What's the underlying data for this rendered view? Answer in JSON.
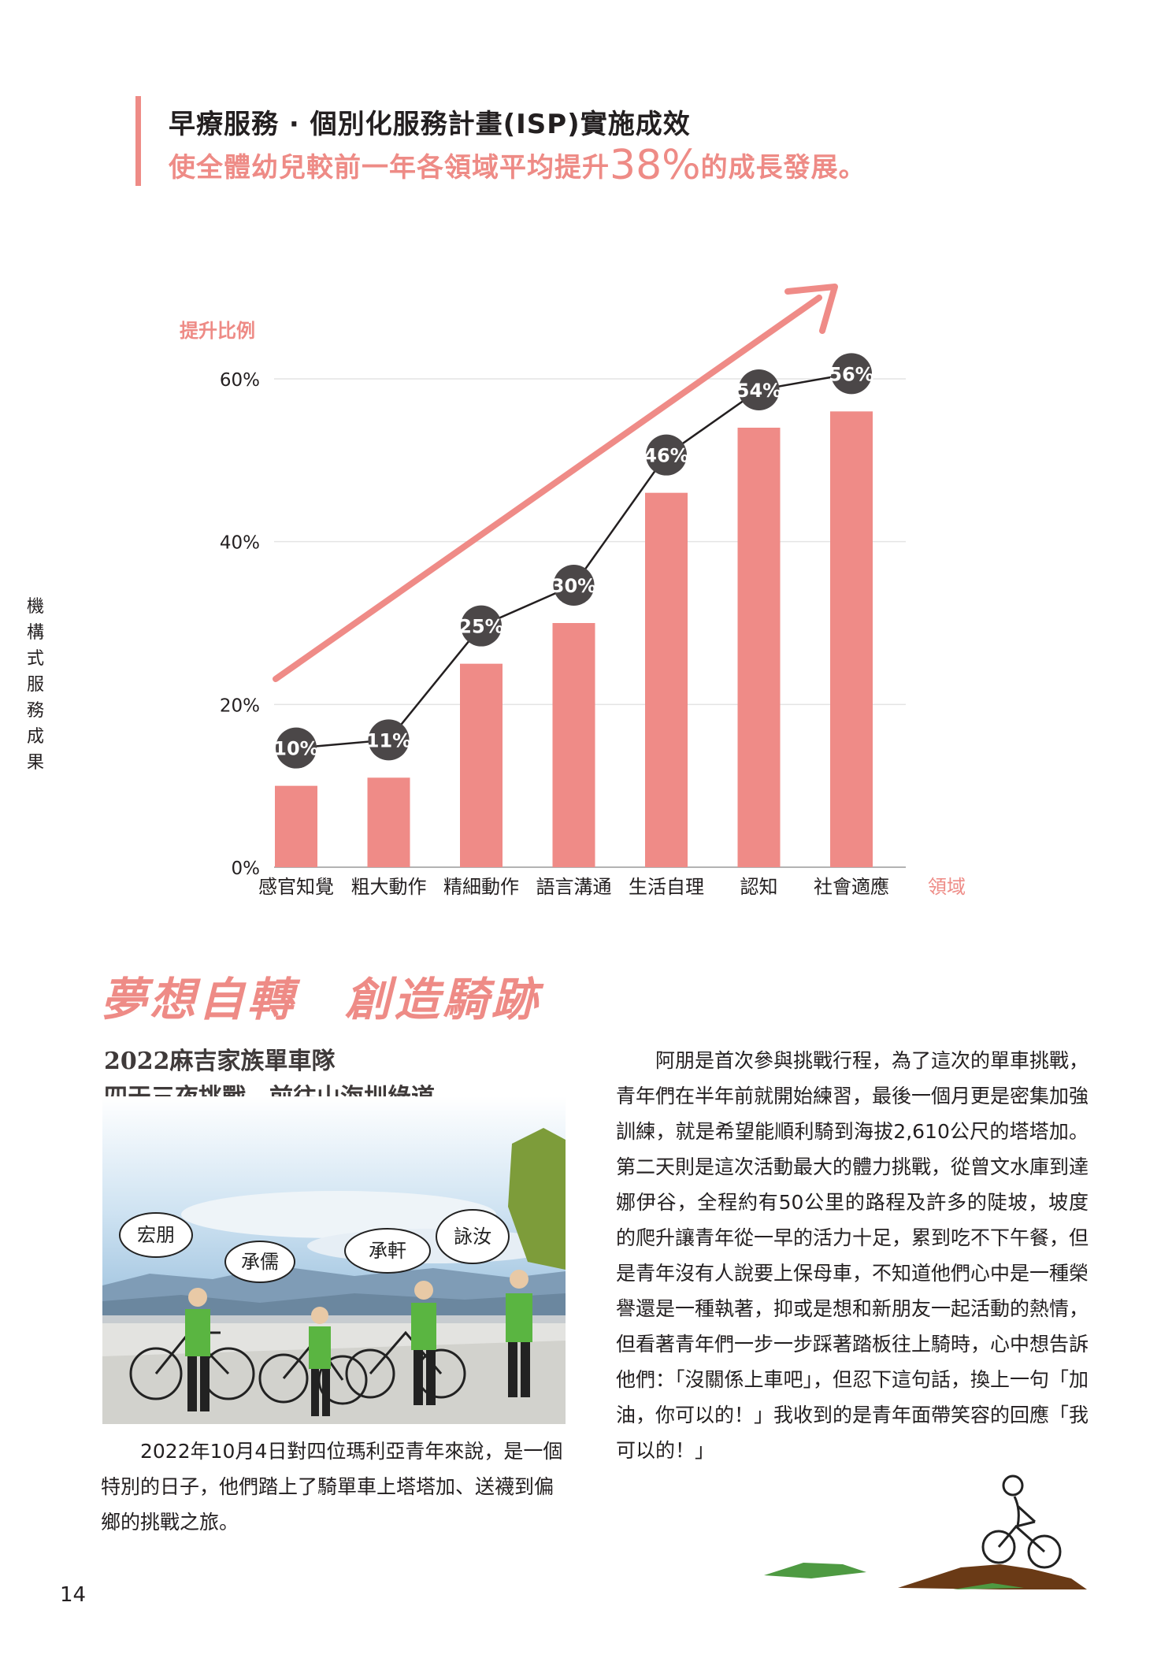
{
  "header": {
    "title": "早療服務 · 個別化服務計畫(ISP)實施成效",
    "subtitle_pre": "使全體幼兒較前一年各領域平均提升",
    "subtitle_num": "38%",
    "subtitle_post": "的成長發展。"
  },
  "side_label": "機構式服務成果",
  "chart_data": {
    "type": "bar",
    "ylabel": "提升比例",
    "xlabel": "領域",
    "categories": [
      "感官知覺",
      "粗大動作",
      "精細動作",
      "語言溝通",
      "生活自理",
      "認知",
      "社會適應"
    ],
    "values": [
      10,
      11,
      25,
      30,
      46,
      54,
      56
    ],
    "value_labels": [
      "10%",
      "11%",
      "25%",
      "30%",
      "46%",
      "54%",
      "56%"
    ],
    "ylim": [
      0,
      60
    ],
    "yticks": [
      0,
      20,
      40,
      60
    ],
    "ytick_labels": [
      "0%",
      "20%",
      "40%",
      "60%"
    ],
    "grid": true,
    "bar_color": "#ef8b87",
    "line_color": "#231f20",
    "arrow_color": "#ef8b87"
  },
  "section": {
    "title": "夢想自轉　創造騎跡",
    "subhead_1": "2022麻吉家族單車隊",
    "subhead_2": "四天三夜挑戰　前往山海圳綠道"
  },
  "photo": {
    "bubbles": [
      "宏朋",
      "承儒",
      "承軒",
      "詠汝"
    ]
  },
  "caption": "2022年10月4日對四位瑪利亞青年來說，是一個特別的日子，他們踏上了騎單車上塔塔加、送襪到偏鄉的挑戰之旅。",
  "body": "阿朋是首次參與挑戰行程，為了這次的單車挑戰，青年們在半年前就開始練習，最後一個月更是密集加強訓練，就是希望能順利騎到海拔2,610公尺的塔塔加。第二天則是這次活動最大的體力挑戰，從曾文水庫到達娜伊谷，全程約有50公里的路程及許多的陡坡，坡度的爬升讓青年從一早的活力十足，累到吃不下午餐，但是青年沒有人說要上保母車，不知道他們心中是一種榮譽還是一種執著，抑或是想和新朋友一起活動的熱情，但看著青年們一步一步踩著踏板往上騎時，心中想告訴他們：「沒關係上車吧」，但忍下這句話，換上一句「加油，你可以的！」我收到的是青年面帶笑容的回應「我可以的！」",
  "page_number": "14"
}
